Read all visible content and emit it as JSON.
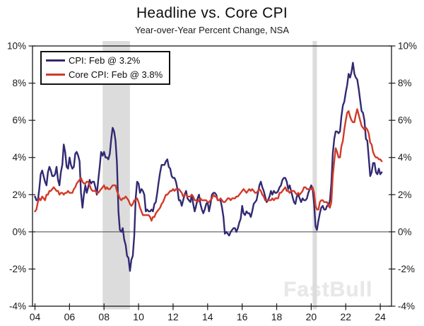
{
  "header": {
    "title": "Headline vs. Core CPI",
    "subtitle": "Year-over-Year Percent Change, NSA"
  },
  "legend": {
    "entries": [
      {
        "label": "CPI: Feb @ 3.2%",
        "color": "#312a72"
      },
      {
        "label": "Core CPI: Feb @ 3.8%",
        "color": "#d13a28"
      }
    ]
  },
  "watermark": "FastBull",
  "colors": {
    "recession_band": "#dcdcdc",
    "frame": "#1a1a1a",
    "zero_line": "#444444",
    "tick_text": "#1a1a1a"
  },
  "chart_data": {
    "type": "line",
    "title": "Headline vs. Core CPI",
    "subtitle": "Year-over-Year Percent Change, NSA",
    "x_start_year": 2004,
    "x_step": "monthly",
    "x_end": "Feb 2024",
    "xlim": [
      2003.857,
      2024.65
    ],
    "ylim": [
      -4,
      10
    ],
    "grid": false,
    "legend_position": "top-left",
    "zero_line": 0,
    "recession_bands": [
      [
        2007.92,
        2009.5
      ],
      [
        2020.08,
        2020.33
      ]
    ],
    "y_ticks": {
      "values": [
        10,
        8,
        6,
        4,
        2,
        0,
        -2,
        -4
      ],
      "labels": [
        "10%",
        "8%",
        "6%",
        "4%",
        "2%",
        "0%",
        "-2%",
        "-4%"
      ]
    },
    "x_ticks": {
      "values": [
        2004,
        2006,
        2008,
        2010,
        2012,
        2014,
        2016,
        2018,
        2020,
        2022,
        2024
      ],
      "labels": [
        "04",
        "06",
        "08",
        "10",
        "12",
        "14",
        "16",
        "18",
        "20",
        "22",
        "24"
      ]
    },
    "series": [
      {
        "name": "CPI: Feb @ 3.2%",
        "color": "#312a72",
        "values": [
          1.9,
          1.7,
          1.7,
          2.3,
          3.1,
          3.3,
          3.0,
          2.7,
          2.5,
          3.2,
          3.5,
          3.3,
          3.0,
          3.0,
          3.1,
          3.5,
          2.8,
          2.5,
          3.2,
          3.6,
          4.7,
          4.3,
          3.5,
          3.4,
          4.0,
          3.6,
          3.4,
          3.5,
          4.2,
          4.3,
          4.1,
          3.8,
          2.1,
          1.3,
          2.0,
          2.5,
          2.1,
          2.4,
          2.8,
          2.6,
          2.7,
          2.7,
          2.4,
          2.0,
          2.8,
          3.5,
          4.3,
          4.1,
          4.3,
          4.0,
          4.0,
          3.9,
          4.2,
          5.0,
          5.6,
          5.4,
          4.9,
          3.7,
          1.1,
          0.1,
          0.0,
          0.2,
          -0.4,
          -0.7,
          -1.3,
          -1.4,
          -2.1,
          -1.5,
          -1.3,
          -0.2,
          1.8,
          2.7,
          2.6,
          2.1,
          2.3,
          2.2,
          2.0,
          1.1,
          1.2,
          1.1,
          1.1,
          1.2,
          1.1,
          1.5,
          1.6,
          2.1,
          2.7,
          3.2,
          3.6,
          3.6,
          3.6,
          3.8,
          3.9,
          3.5,
          3.4,
          3.0,
          2.9,
          2.9,
          2.7,
          2.3,
          1.7,
          1.7,
          1.4,
          1.7,
          2.0,
          2.2,
          1.8,
          1.7,
          1.6,
          2.0,
          1.5,
          1.1,
          1.4,
          1.8,
          2.0,
          1.5,
          1.2,
          1.0,
          1.2,
          1.5,
          1.6,
          1.1,
          1.5,
          2.0,
          2.1,
          2.1,
          2.0,
          1.7,
          1.7,
          1.7,
          1.3,
          0.8,
          -0.1,
          0.0,
          -0.1,
          -0.2,
          0.0,
          0.1,
          0.2,
          0.2,
          0.0,
          0.2,
          0.5,
          0.7,
          1.4,
          1.0,
          0.9,
          1.1,
          1.0,
          1.0,
          0.8,
          1.1,
          1.5,
          1.6,
          1.7,
          2.1,
          2.5,
          2.7,
          2.4,
          2.2,
          1.9,
          1.6,
          1.7,
          1.9,
          2.2,
          2.0,
          2.2,
          2.1,
          2.1,
          2.2,
          2.4,
          2.5,
          2.8,
          2.9,
          2.9,
          2.7,
          2.3,
          2.5,
          2.2,
          1.9,
          1.6,
          1.5,
          1.9,
          2.0,
          1.8,
          1.6,
          1.8,
          1.7,
          1.7,
          1.8,
          2.1,
          2.3,
          2.5,
          2.3,
          1.5,
          0.3,
          0.1,
          0.6,
          1.0,
          1.3,
          1.4,
          1.2,
          1.2,
          1.4,
          1.4,
          1.7,
          2.6,
          4.2,
          5.0,
          5.4,
          5.4,
          5.3,
          5.4,
          6.2,
          6.8,
          7.0,
          7.5,
          7.9,
          8.5,
          8.3,
          8.6,
          9.1,
          8.5,
          8.3,
          8.2,
          7.7,
          7.1,
          6.5,
          6.4,
          6.0,
          5.0,
          4.9,
          4.0,
          3.0,
          3.2,
          3.7,
          3.7,
          3.2,
          3.1,
          3.4,
          3.1,
          3.2
        ]
      },
      {
        "name": "Core CPI: Feb @ 3.8%",
        "color": "#d13a28",
        "values": [
          1.1,
          1.2,
          1.6,
          1.8,
          1.7,
          1.9,
          1.8,
          1.7,
          2.0,
          2.0,
          2.2,
          2.2,
          2.3,
          2.4,
          2.3,
          2.2,
          2.2,
          2.0,
          2.1,
          2.1,
          2.0,
          2.1,
          2.1,
          2.2,
          2.1,
          2.1,
          2.1,
          2.3,
          2.4,
          2.6,
          2.7,
          2.8,
          2.9,
          2.7,
          2.6,
          2.6,
          2.7,
          2.7,
          2.5,
          2.3,
          2.2,
          2.2,
          2.2,
          2.1,
          2.1,
          2.2,
          2.3,
          2.4,
          2.5,
          2.3,
          2.4,
          2.3,
          2.3,
          2.4,
          2.5,
          2.5,
          2.5,
          2.2,
          2.0,
          1.8,
          1.7,
          1.8,
          1.8,
          1.9,
          1.8,
          1.7,
          1.5,
          1.4,
          1.5,
          1.7,
          1.7,
          1.8,
          1.6,
          1.3,
          1.1,
          0.9,
          0.9,
          0.9,
          0.9,
          0.9,
          0.8,
          0.6,
          0.8,
          0.8,
          1.0,
          1.1,
          1.2,
          1.3,
          1.5,
          1.6,
          1.8,
          2.0,
          2.0,
          2.1,
          2.2,
          2.2,
          2.3,
          2.2,
          2.3,
          2.3,
          2.3,
          2.2,
          2.1,
          1.9,
          2.0,
          2.0,
          1.9,
          1.9,
          1.9,
          2.0,
          1.9,
          1.7,
          1.7,
          1.6,
          1.7,
          1.8,
          1.7,
          1.7,
          1.7,
          1.7,
          1.6,
          1.6,
          1.7,
          1.8,
          2.0,
          1.9,
          1.9,
          1.7,
          1.7,
          1.8,
          1.7,
          1.6,
          1.6,
          1.7,
          1.8,
          1.8,
          1.7,
          1.8,
          1.8,
          1.8,
          1.9,
          1.9,
          2.0,
          2.1,
          2.2,
          2.3,
          2.2,
          2.1,
          2.2,
          2.3,
          2.2,
          2.3,
          2.2,
          2.1,
          2.1,
          2.2,
          2.3,
          2.2,
          2.0,
          1.9,
          1.7,
          1.7,
          1.7,
          1.7,
          1.7,
          1.8,
          1.7,
          1.8,
          1.8,
          1.8,
          2.1,
          2.1,
          2.2,
          2.3,
          2.4,
          2.2,
          2.2,
          2.1,
          2.2,
          2.2,
          2.2,
          2.1,
          2.0,
          2.1,
          2.0,
          2.1,
          2.2,
          2.4,
          2.4,
          2.3,
          2.3,
          2.3,
          2.3,
          2.4,
          2.1,
          1.4,
          1.2,
          1.2,
          1.6,
          1.7,
          1.7,
          1.6,
          1.6,
          1.6,
          1.4,
          1.3,
          1.6,
          3.0,
          3.8,
          4.5,
          4.3,
          4.0,
          4.0,
          4.6,
          4.9,
          5.5,
          6.0,
          6.4,
          6.5,
          6.2,
          6.0,
          5.9,
          5.9,
          6.3,
          6.6,
          6.3,
          6.0,
          5.7,
          5.6,
          5.5,
          5.6,
          5.5,
          5.3,
          4.8,
          4.7,
          4.3,
          4.1,
          4.0,
          4.0,
          3.9,
          3.9,
          3.8
        ]
      }
    ]
  }
}
